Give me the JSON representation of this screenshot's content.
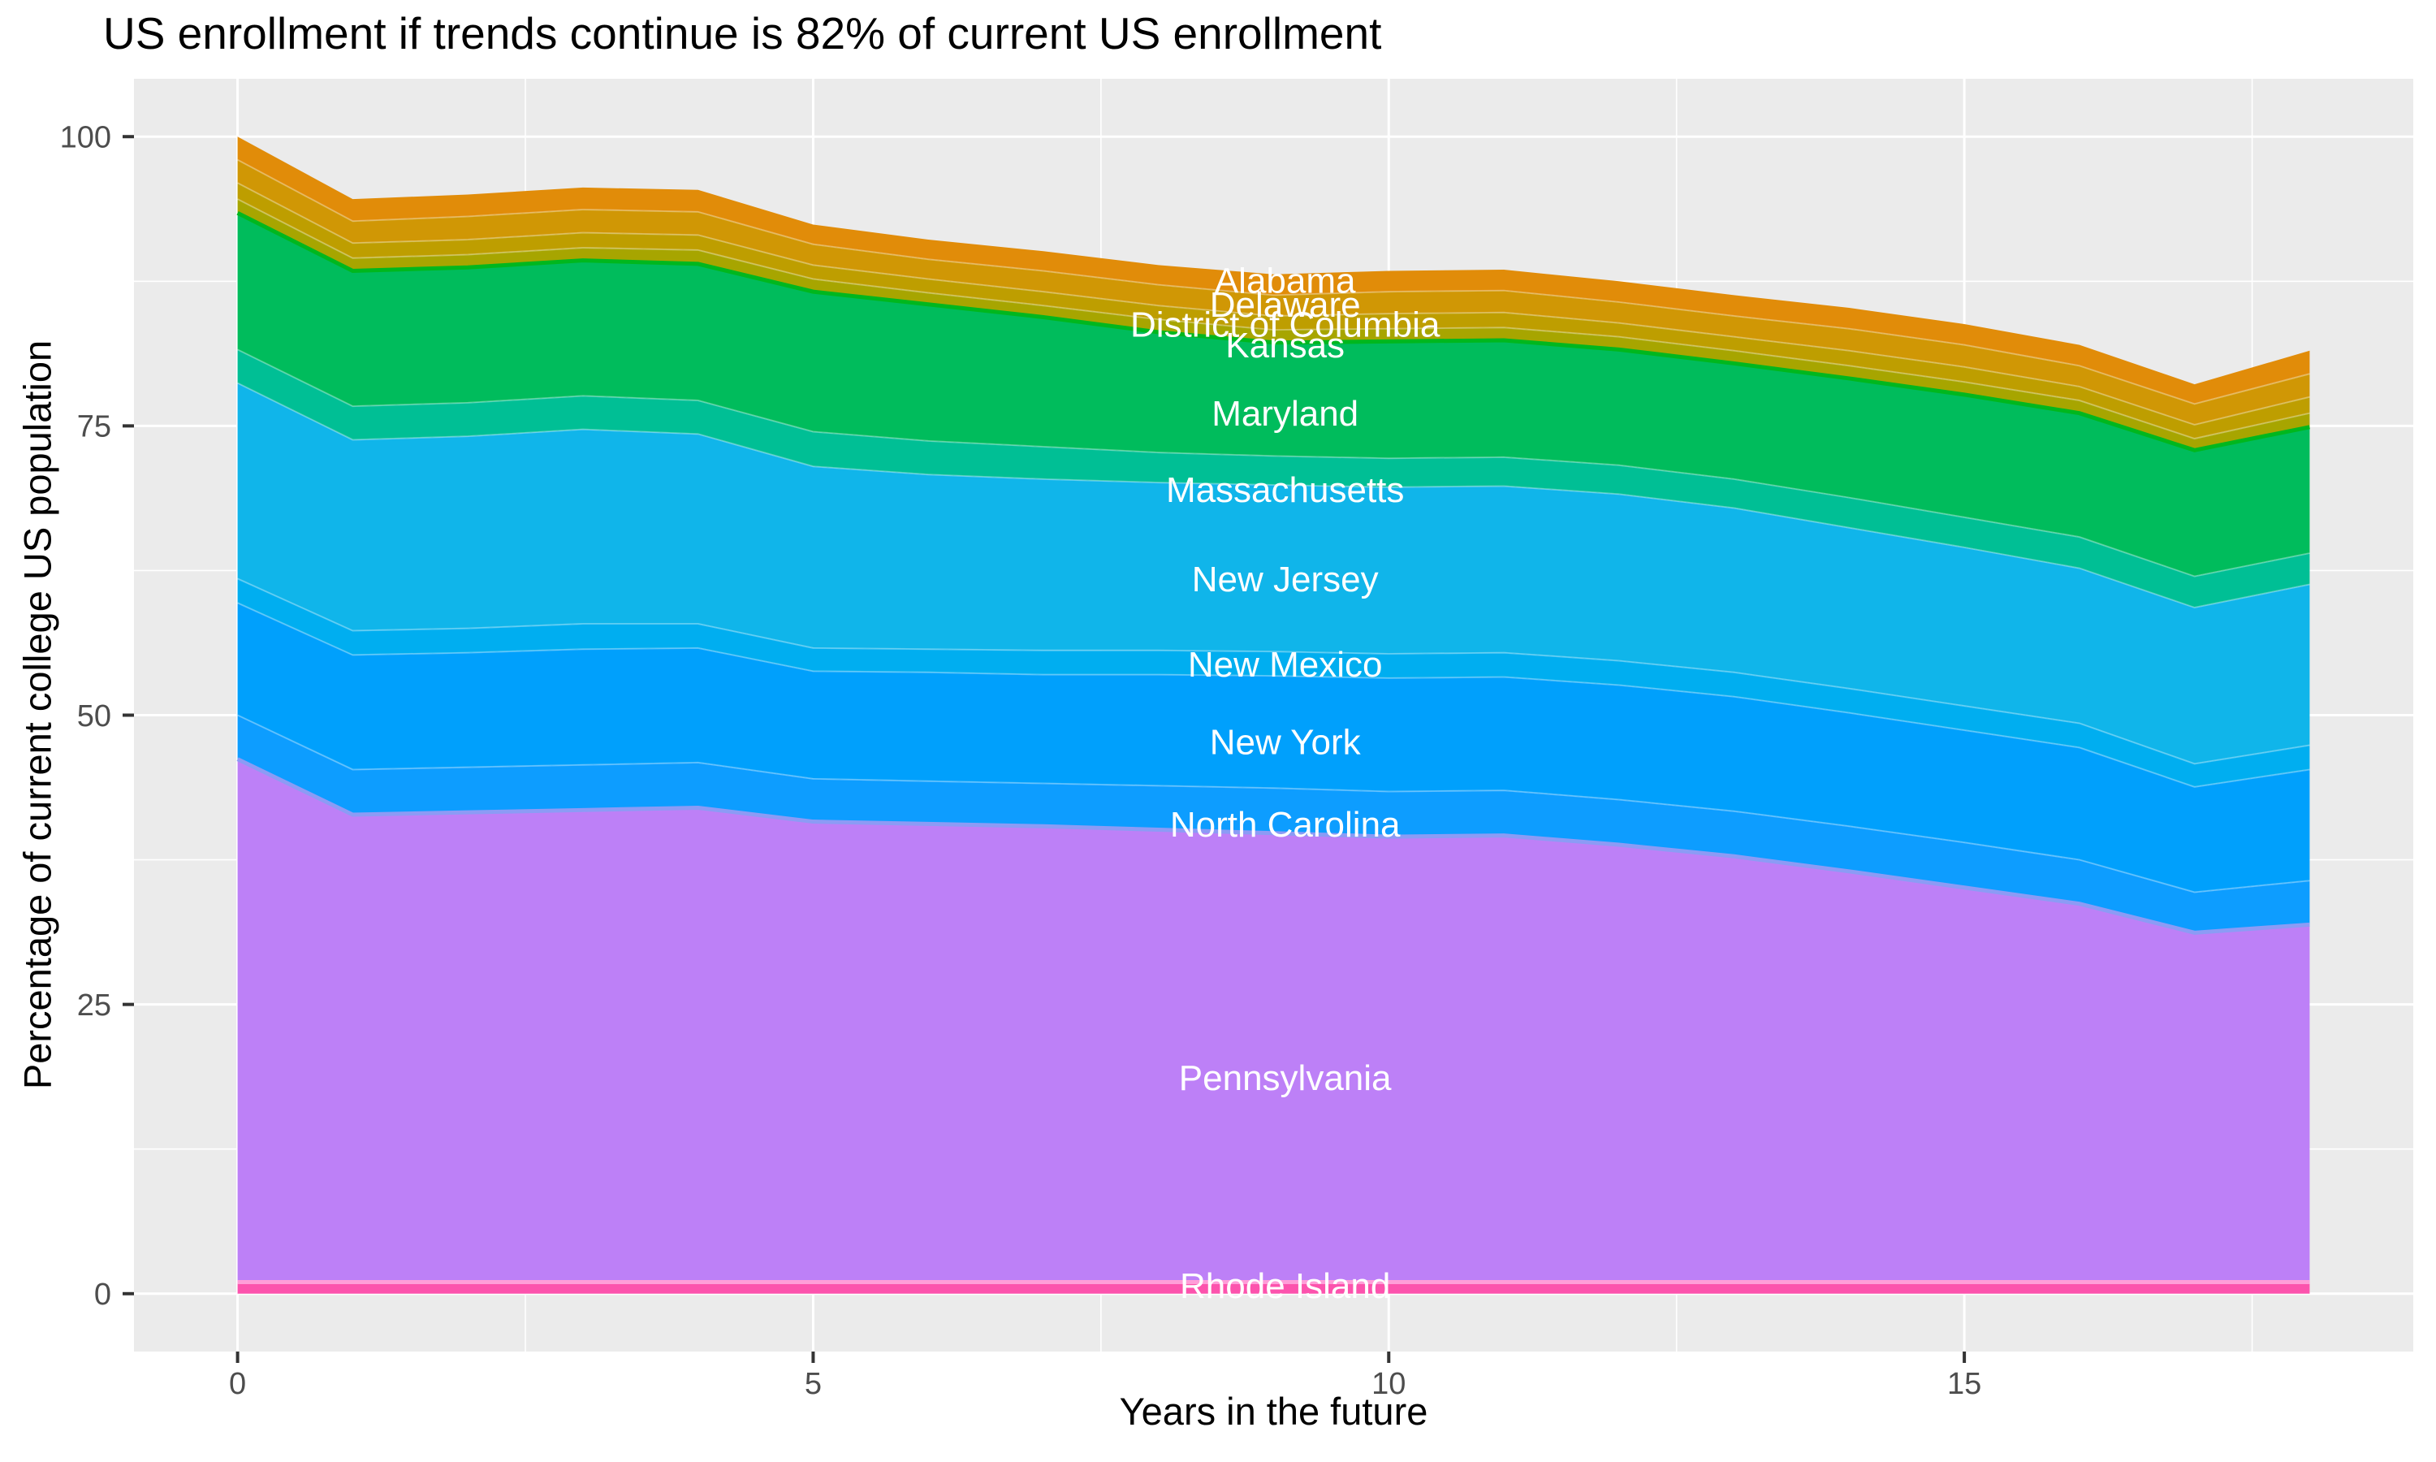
{
  "title": "US enrollment if trends continue is 82% of current US enrollment",
  "style": {
    "panel_bg": "#EBEBEB",
    "grid_color": "#FFFFFF",
    "tick_mark_color": "#333333",
    "tick_label_color": "#4D4D4D",
    "state_label_color": "#FFFFFF",
    "band_divider_color": "rgba(255,255,255,0.32)"
  },
  "chart_data": {
    "type": "area",
    "stacked": true,
    "title": "US enrollment if trends continue is 82% of current US enrollment",
    "xlabel": "Years in the future",
    "ylabel": "Percentage of current college US population",
    "x": [
      0,
      1,
      2,
      3,
      4,
      5,
      6,
      7,
      8,
      9,
      10,
      11,
      12,
      13,
      14,
      15,
      16,
      17,
      18
    ],
    "x_ticks": [
      0,
      5,
      10,
      15
    ],
    "y_ticks": [
      0,
      25,
      50,
      75,
      100
    ],
    "x_minor_ticks": [
      2.5,
      7.5,
      12.5,
      17.5
    ],
    "y_minor_ticks": [
      12.5,
      37.5,
      62.5,
      87.5
    ],
    "xlim": [
      -0.9,
      18.9
    ],
    "ylim": [
      -5,
      105
    ],
    "grid": true,
    "legend": "none",
    "label_x": 9.1,
    "total_start_pct": 100,
    "total_end_pct": 82,
    "series": [
      {
        "name": "Alabama",
        "color": "#E18C09",
        "label_value": 87.6,
        "values": [
          2.0,
          1.9,
          1.9,
          1.9,
          1.9,
          1.7,
          1.7,
          1.7,
          1.7,
          1.8,
          1.8,
          1.8,
          1.8,
          1.8,
          1.8,
          1.8,
          1.8,
          1.7,
          2.0
        ]
      },
      {
        "name": "Delaware",
        "color": "#D09705",
        "label_value": 85.5,
        "values": [
          2.0,
          1.9,
          2.0,
          2.0,
          2.0,
          1.8,
          1.7,
          1.8,
          1.8,
          1.8,
          1.9,
          1.9,
          1.8,
          1.8,
          1.9,
          1.9,
          1.8,
          1.8,
          2.0
        ]
      },
      {
        "name": "District of Columbia",
        "color": "#BE9E00",
        "label_value": 83.8,
        "values": [
          1.4,
          1.3,
          1.3,
          1.3,
          1.3,
          1.2,
          1.2,
          1.2,
          1.2,
          1.2,
          1.3,
          1.3,
          1.2,
          1.2,
          1.3,
          1.3,
          1.2,
          1.2,
          1.4
        ]
      },
      {
        "name": "Kansas",
        "color": "#A7A500",
        "label_value": 82.0,
        "values": [
          1.2,
          1.1,
          1.1,
          1.1,
          1.2,
          1.1,
          1.0,
          1.0,
          1.1,
          1.1,
          1.1,
          1.1,
          1.1,
          1.1,
          1.1,
          1.1,
          1.1,
          1.0,
          1.2
        ]
      },
      {
        "name": "Maryland",
        "color": "#00BC5C",
        "top_line": "#00B71E",
        "label_value": 76.1,
        "values": [
          11.8,
          11.7,
          11.7,
          11.7,
          11.8,
          12.1,
          11.8,
          11.2,
          10.4,
          9.8,
          10.1,
          10.1,
          10.0,
          10.0,
          10.3,
          10.6,
          10.7,
          10.9,
          10.9
        ]
      },
      {
        "name": "Massachusetts",
        "color": "#00BF95",
        "label_value": 69.5,
        "values": [
          2.9,
          2.9,
          2.9,
          2.9,
          2.9,
          3.0,
          2.9,
          2.8,
          2.6,
          2.5,
          2.5,
          2.5,
          2.5,
          2.5,
          2.6,
          2.6,
          2.7,
          2.7,
          2.7
        ]
      },
      {
        "name": "New Jersey",
        "color": "#10B5EA",
        "label_value": 61.8,
        "values": [
          16.9,
          16.5,
          16.6,
          16.8,
          16.4,
          15.7,
          15.1,
          14.8,
          14.5,
          14.4,
          14.4,
          14.4,
          14.4,
          14.2,
          13.9,
          13.7,
          13.4,
          13.5,
          13.9
        ]
      },
      {
        "name": "New Mexico",
        "color": "#00AEF0",
        "label_value": 54.4,
        "values": [
          2.1,
          2.1,
          2.1,
          2.2,
          2.1,
          2.0,
          2.0,
          2.1,
          2.1,
          2.1,
          2.1,
          2.1,
          2.1,
          2.1,
          2.1,
          2.1,
          2.1,
          2.0,
          2.1
        ]
      },
      {
        "name": "New York",
        "color": "#00A0FC",
        "label_value": 47.7,
        "values": [
          9.7,
          9.9,
          9.9,
          10.0,
          9.9,
          9.3,
          9.4,
          9.4,
          9.6,
          9.7,
          9.8,
          9.8,
          9.9,
          9.9,
          9.8,
          9.7,
          9.7,
          9.1,
          9.6
        ]
      },
      {
        "name": "North Carolina",
        "color": "#0D9DFF",
        "label_value": 40.6,
        "values": [
          3.8,
          3.9,
          3.9,
          3.9,
          3.9,
          3.7,
          3.7,
          3.7,
          3.8,
          3.9,
          3.9,
          3.9,
          3.9,
          3.9,
          3.9,
          3.9,
          3.8,
          3.5,
          3.8
        ]
      },
      {
        "name": "Pennsylvania",
        "color": "#BD80F7",
        "top_line": "#8C9BF5",
        "label_value": 18.7,
        "values": [
          45.2,
          40.4,
          40.6,
          40.8,
          41.0,
          39.8,
          39.6,
          39.4,
          39.1,
          38.8,
          38.5,
          38.6,
          37.8,
          36.8,
          35.5,
          34.1,
          32.7,
          30.2,
          30.9
        ]
      },
      {
        "name": "Rhode Island",
        "color": "#FC53AD",
        "top_line": "#FF9ED8",
        "label_value": 0.7,
        "values": [
          1.0,
          1.0,
          1.0,
          1.0,
          1.0,
          1.0,
          1.0,
          1.0,
          1.0,
          1.0,
          1.0,
          1.0,
          1.0,
          1.0,
          1.0,
          1.0,
          1.0,
          1.0,
          1.0
        ]
      }
    ]
  }
}
